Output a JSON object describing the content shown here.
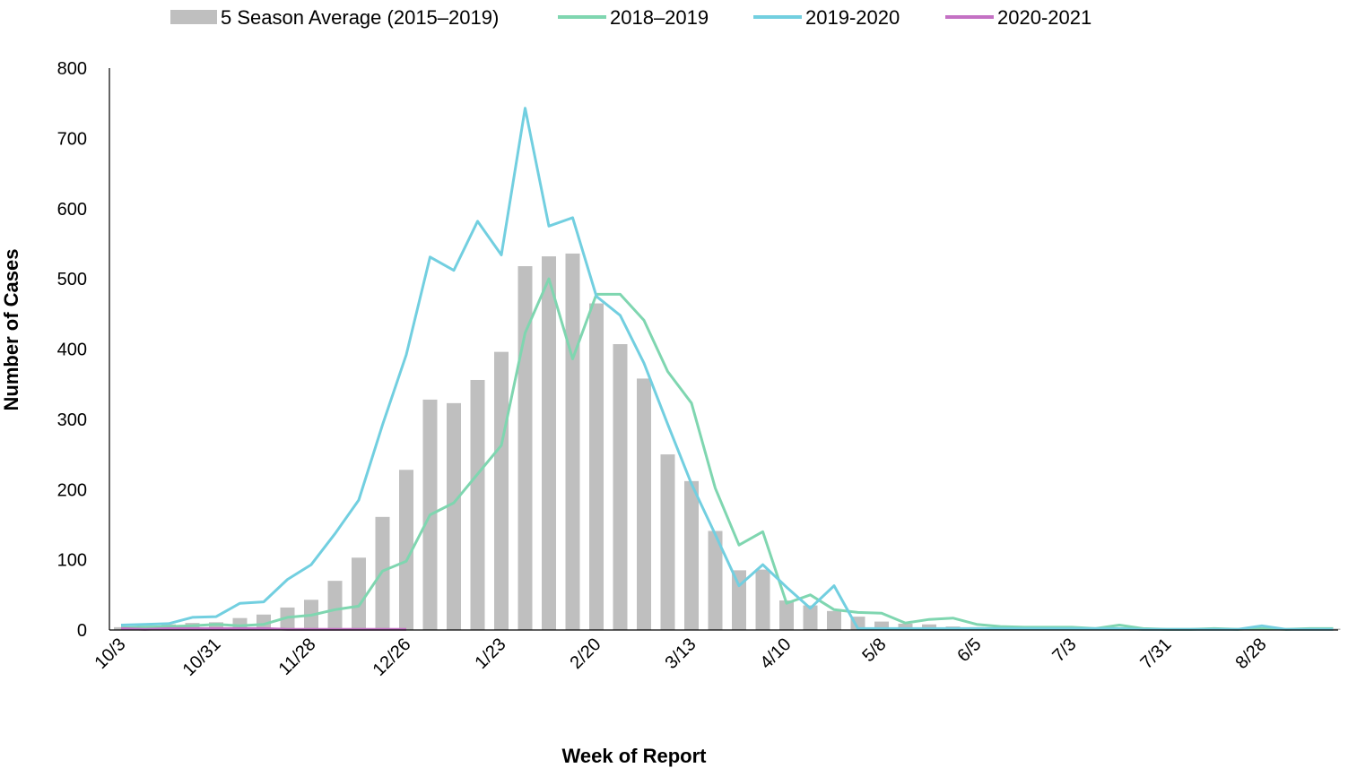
{
  "chart_data": {
    "type": "bar",
    "title": "",
    "xlabel": "Week of Report",
    "ylabel": "Number of Cases",
    "ylim": [
      0,
      800
    ],
    "yticks": [
      0,
      100,
      200,
      300,
      400,
      500,
      600,
      700,
      800
    ],
    "grid": false,
    "legend_position": "top",
    "x_tick_labels": [
      {
        "index": 0,
        "label": "10/3"
      },
      {
        "index": 4,
        "label": "10/31"
      },
      {
        "index": 8,
        "label": "11/28"
      },
      {
        "index": 12,
        "label": "12/26"
      },
      {
        "index": 16,
        "label": "1/23"
      },
      {
        "index": 20,
        "label": "2/20"
      },
      {
        "index": 24,
        "label": "3/13"
      },
      {
        "index": 28,
        "label": "4/10"
      },
      {
        "index": 32,
        "label": "5/8"
      },
      {
        "index": 36,
        "label": "6/5"
      },
      {
        "index": 40,
        "label": "7/3"
      },
      {
        "index": 44,
        "label": "7/31"
      },
      {
        "index": 48,
        "label": "8/28"
      }
    ],
    "series": [
      {
        "name": "5 Season Average (2015–2019)",
        "kind": "bar",
        "color": "#bfbfbf",
        "values": [
          4,
          6,
          8,
          10,
          11,
          17,
          22,
          32,
          43,
          70,
          103,
          161,
          228,
          328,
          323,
          356,
          396,
          518,
          532,
          536,
          465,
          407,
          358,
          250,
          212,
          141,
          85,
          86,
          42,
          35,
          27,
          19,
          12,
          9,
          8,
          5,
          4,
          3,
          3,
          3,
          3,
          2,
          2,
          2,
          2,
          2,
          2,
          2,
          2,
          2,
          2,
          2
        ]
      },
      {
        "name": "2018–2019",
        "kind": "line",
        "color": "#7fd6b0",
        "values": [
          3,
          4,
          5,
          6,
          8,
          6,
          8,
          18,
          21,
          29,
          34,
          84,
          98,
          164,
          181,
          222,
          263,
          423,
          500,
          386,
          478,
          478,
          441,
          368,
          323,
          202,
          121,
          140,
          38,
          50,
          29,
          25,
          24,
          10,
          15,
          17,
          8,
          5,
          4,
          4,
          4,
          2,
          7,
          2,
          1,
          1,
          2,
          1,
          2,
          1,
          2,
          2
        ]
      },
      {
        "name": "2019-2020",
        "kind": "line",
        "color": "#72cfe0",
        "values": [
          7,
          8,
          9,
          18,
          19,
          38,
          40,
          72,
          93,
          137,
          185,
          292,
          392,
          531,
          512,
          582,
          534,
          743,
          575,
          587,
          475,
          448,
          380,
          293,
          208,
          136,
          63,
          93,
          61,
          31,
          63,
          2,
          2,
          2,
          2,
          2,
          2,
          2,
          2,
          2,
          2,
          2,
          2,
          1,
          1,
          1,
          1,
          1,
          6,
          1,
          1,
          1
        ]
      },
      {
        "name": "2020-2021",
        "kind": "line",
        "color": "#c471c4",
        "values": [
          2,
          1,
          2,
          2,
          2,
          2,
          2,
          1,
          1,
          1,
          1,
          1,
          1
        ]
      }
    ]
  }
}
